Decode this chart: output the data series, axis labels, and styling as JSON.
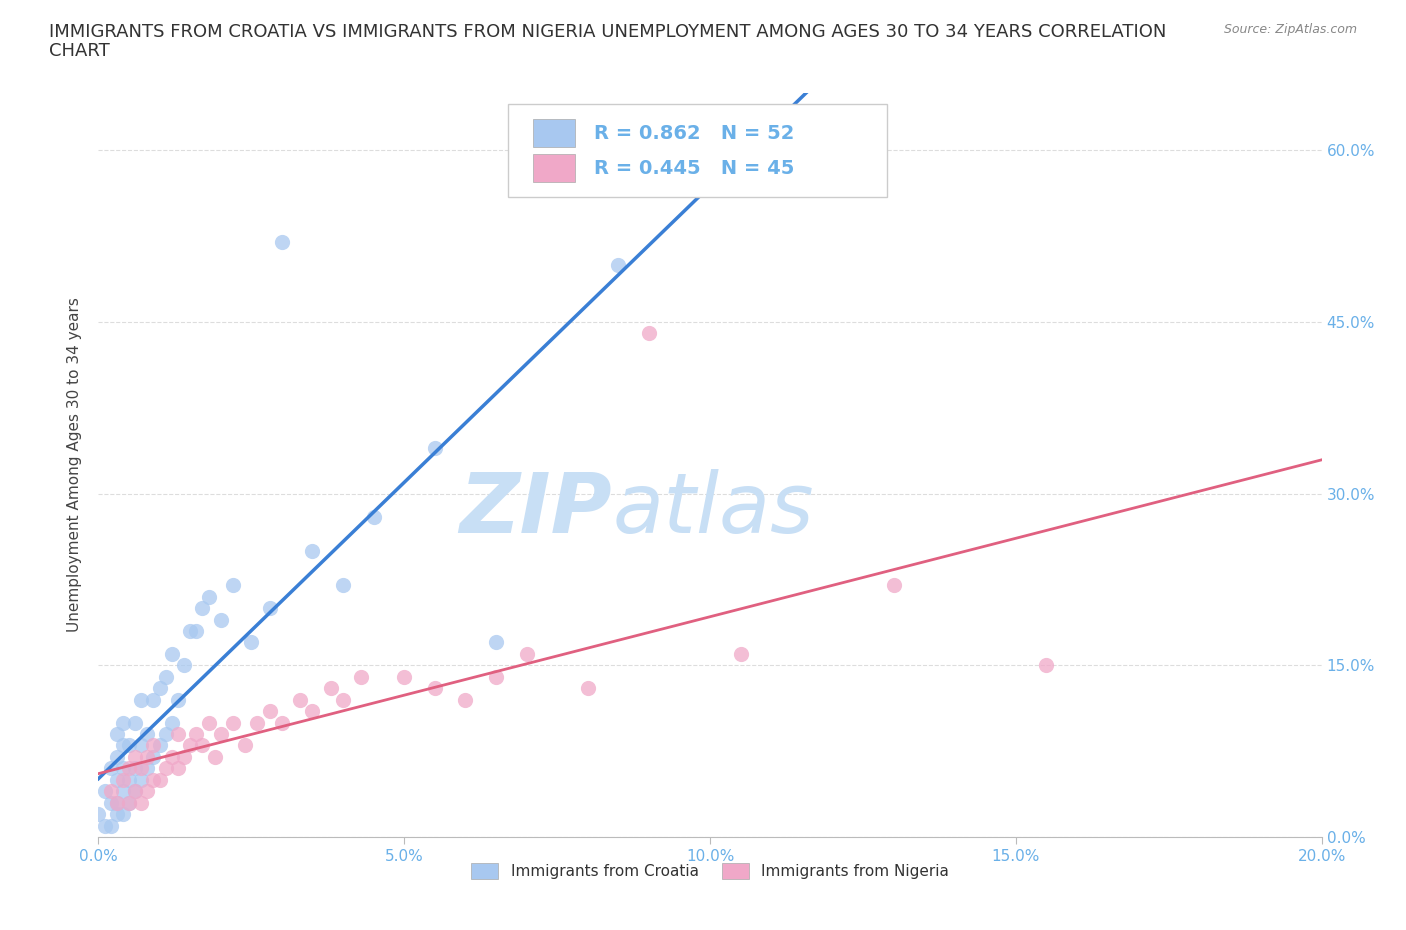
{
  "title_line1": "IMMIGRANTS FROM CROATIA VS IMMIGRANTS FROM NIGERIA UNEMPLOYMENT AMONG AGES 30 TO 34 YEARS CORRELATION",
  "title_line2": "CHART",
  "source": "Source: ZipAtlas.com",
  "ylabel": "Unemployment Among Ages 30 to 34 years",
  "xlim": [
    0.0,
    0.2
  ],
  "ylim": [
    0.0,
    0.65
  ],
  "xticks": [
    0.0,
    0.05,
    0.1,
    0.15,
    0.2
  ],
  "yticks_right": [
    0.0,
    0.15,
    0.3,
    0.45,
    0.6
  ],
  "ytick_labels_right": [
    "0.0%",
    "15.0%",
    "30.0%",
    "45.0%",
    "60.0%"
  ],
  "xtick_labels": [
    "0.0%",
    "5.0%",
    "10.0%",
    "15.0%",
    "20.0%"
  ],
  "croatia_color": "#a8c8f0",
  "nigeria_color": "#f0a8c8",
  "croatia_line_color": "#3a7fd5",
  "nigeria_line_color": "#e06080",
  "tick_color": "#6ab0e8",
  "watermark_zip": "ZIP",
  "watermark_atlas": "atlas",
  "watermark_color": "#c8dff5",
  "R_croatia": 0.862,
  "N_croatia": 52,
  "R_nigeria": 0.445,
  "N_nigeria": 45,
  "croatia_scatter_x": [
    0.0,
    0.001,
    0.001,
    0.002,
    0.002,
    0.002,
    0.003,
    0.003,
    0.003,
    0.003,
    0.003,
    0.004,
    0.004,
    0.004,
    0.004,
    0.004,
    0.005,
    0.005,
    0.005,
    0.006,
    0.006,
    0.006,
    0.007,
    0.007,
    0.007,
    0.008,
    0.008,
    0.009,
    0.009,
    0.01,
    0.01,
    0.011,
    0.011,
    0.012,
    0.012,
    0.013,
    0.014,
    0.015,
    0.016,
    0.017,
    0.018,
    0.02,
    0.022,
    0.025,
    0.028,
    0.03,
    0.035,
    0.04,
    0.045,
    0.055,
    0.065,
    0.085
  ],
  "croatia_scatter_y": [
    0.02,
    0.01,
    0.04,
    0.01,
    0.03,
    0.06,
    0.02,
    0.03,
    0.05,
    0.07,
    0.09,
    0.02,
    0.04,
    0.06,
    0.08,
    0.1,
    0.03,
    0.05,
    0.08,
    0.04,
    0.06,
    0.1,
    0.05,
    0.08,
    0.12,
    0.06,
    0.09,
    0.07,
    0.12,
    0.08,
    0.13,
    0.09,
    0.14,
    0.1,
    0.16,
    0.12,
    0.15,
    0.18,
    0.18,
    0.2,
    0.21,
    0.19,
    0.22,
    0.17,
    0.2,
    0.52,
    0.25,
    0.22,
    0.28,
    0.34,
    0.17,
    0.5
  ],
  "nigeria_scatter_x": [
    0.002,
    0.003,
    0.004,
    0.005,
    0.005,
    0.006,
    0.006,
    0.007,
    0.007,
    0.008,
    0.008,
    0.009,
    0.009,
    0.01,
    0.011,
    0.012,
    0.013,
    0.013,
    0.014,
    0.015,
    0.016,
    0.017,
    0.018,
    0.019,
    0.02,
    0.022,
    0.024,
    0.026,
    0.028,
    0.03,
    0.033,
    0.035,
    0.038,
    0.04,
    0.043,
    0.05,
    0.055,
    0.06,
    0.065,
    0.07,
    0.08,
    0.09,
    0.105,
    0.13,
    0.155
  ],
  "nigeria_scatter_y": [
    0.04,
    0.03,
    0.05,
    0.03,
    0.06,
    0.04,
    0.07,
    0.03,
    0.06,
    0.04,
    0.07,
    0.05,
    0.08,
    0.05,
    0.06,
    0.07,
    0.06,
    0.09,
    0.07,
    0.08,
    0.09,
    0.08,
    0.1,
    0.07,
    0.09,
    0.1,
    0.08,
    0.1,
    0.11,
    0.1,
    0.12,
    0.11,
    0.13,
    0.12,
    0.14,
    0.14,
    0.13,
    0.12,
    0.14,
    0.16,
    0.13,
    0.44,
    0.16,
    0.22,
    0.15
  ],
  "grid_color": "#dddddd",
  "bg_color": "white",
  "title_fontsize": 13,
  "axis_label_fontsize": 11,
  "tick_fontsize": 11,
  "legend_fontsize": 14
}
